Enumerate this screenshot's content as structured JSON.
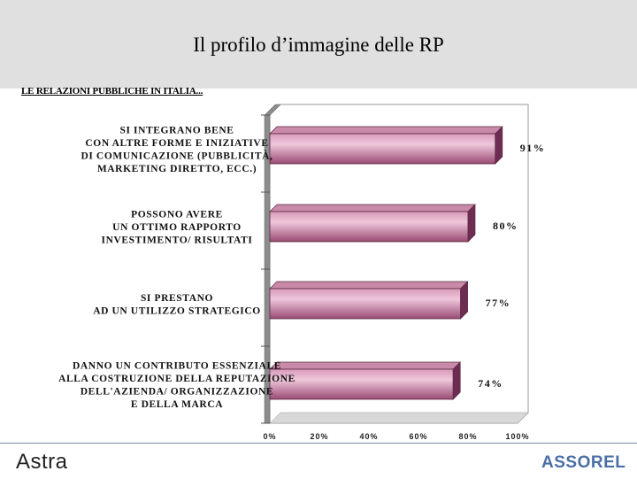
{
  "header": {
    "title": "Il profilo d’immagine delle RP",
    "subtitle": "LE RELAZIONI PUBBLICHE IN ITALIA..."
  },
  "footer": {
    "left_logo": "Astra",
    "right_logo": "ASSOREL"
  },
  "colors": {
    "bar_fill": "#b0608a",
    "bar_light": "#e8b0cc",
    "bar_dark": "#7a3058",
    "header_bg": "#e0e0e0"
  },
  "chart_data": {
    "type": "bar",
    "orientation": "horizontal",
    "categories": [
      [
        "SI INTEGRANO BENE",
        "CON ALTRE FORME E INIZIATIVE",
        "DI COMUNICAZIONE (PUBBLICITÀ,",
        "MARKETING DIRETTO, ECC.)"
      ],
      [
        "POSSONO AVERE",
        "UN OTTIMO RAPPORTO",
        "INVESTIMENTO/ RISULTATI"
      ],
      [
        "SI PRESTANO",
        "AD UN UTILIZZO STRATEGICO"
      ],
      [
        "DANNO UN CONTRIBUTO ESSENZIALE",
        "ALLA COSTRUZIONE DELLA REPUTAZIONE",
        "DELL'AZIENDA/ ORGANIZZAZIONE",
        "E DELLA MARCA"
      ]
    ],
    "values": [
      91,
      80,
      77,
      74
    ],
    "value_labels": [
      "91%",
      "80%",
      "77%",
      "74%"
    ],
    "xlim": [
      0,
      100
    ],
    "x_ticks": [
      "0%",
      "20%",
      "40%",
      "60%",
      "80%",
      "100%"
    ],
    "grid": false
  }
}
